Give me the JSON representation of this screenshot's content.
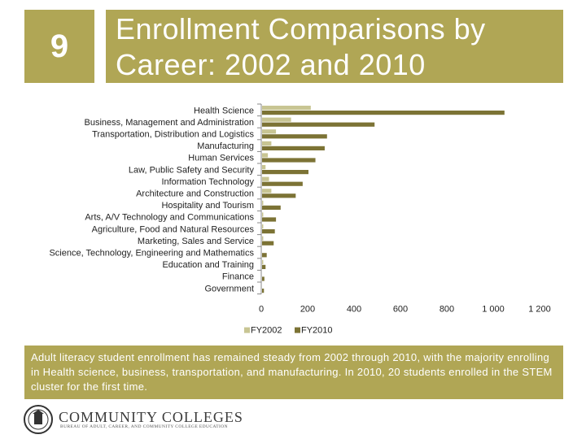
{
  "slide": {
    "number": "9",
    "title_line1": "Enrollment  Comparisons by",
    "title_line2": "Career: 2002 and 2010",
    "caption": "Adult literacy student enrollment has remained steady from 2002 through 2010, with the majority enrolling in Health science, business, transportation, and manufacturing.  In 2010, 20 students enrolled in the STEM cluster for the first time."
  },
  "logo": {
    "name": "COMMUNITY COLLEGES",
    "subtitle": "BUREAU OF ADULT, CAREER, AND COMMUNITY COLLEGE EDUCATION"
  },
  "colors": {
    "fy2002": "#c8c593",
    "fy2010": "#7c7335",
    "accent": "#b0a655"
  },
  "chart_data": {
    "type": "bar",
    "orientation": "horizontal",
    "categories": [
      "Health Science",
      "Business, Management and Administration",
      "Transportation, Distribution and Logistics",
      "Manufacturing",
      "Human Services",
      "Law, Public Safety and Security",
      "Information Technology",
      "Architecture and Construction",
      "Hospitality and Tourism",
      "Arts, A/V Technology and Communications",
      "Agriculture, Food and Natural Resources",
      "Marketing, Sales and Service",
      "Science, Technology, Engineering and Mathematics",
      "Education and Training",
      "Finance",
      "Government"
    ],
    "series": [
      {
        "name": "FY2002",
        "values": [
          210,
          125,
          60,
          40,
          25,
          15,
          30,
          40,
          5,
          5,
          5,
          5,
          0,
          5,
          0,
          0
        ]
      },
      {
        "name": "FY2010",
        "values": [
          1045,
          485,
          280,
          270,
          230,
          200,
          175,
          145,
          80,
          60,
          55,
          50,
          20,
          15,
          10,
          8
        ]
      }
    ],
    "xlim": [
      0,
      1200
    ],
    "xticks": [
      "0",
      "200",
      "400",
      "600",
      "800",
      "1 000",
      "1 200"
    ],
    "xtick_values": [
      0,
      200,
      400,
      600,
      800,
      1000,
      1200
    ],
    "legend": [
      "FY2002",
      "FY2010"
    ],
    "legend_position": "bottom-left"
  }
}
